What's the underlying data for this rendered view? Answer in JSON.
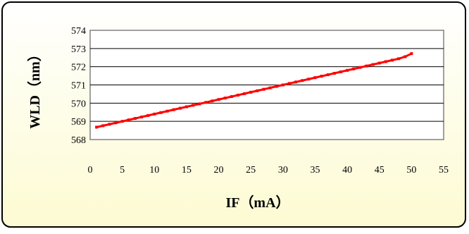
{
  "chart_data": {
    "type": "line",
    "title": "",
    "xlabel": "IF（mA）",
    "ylabel": "WLD（nm）",
    "xlim": [
      0,
      55
    ],
    "ylim": [
      568,
      574
    ],
    "xticks": [
      0,
      5,
      10,
      15,
      20,
      25,
      30,
      35,
      40,
      45,
      50,
      55
    ],
    "yticks": [
      568,
      569,
      570,
      571,
      572,
      573,
      574
    ],
    "grid": "horizontal",
    "legend": "none",
    "series": [
      {
        "color": "#ff0000",
        "x": [
          1,
          2,
          3,
          4,
          5,
          6,
          7,
          8,
          9,
          10,
          11,
          12,
          13,
          14,
          15,
          16,
          17,
          18,
          19,
          20,
          21,
          22,
          23,
          24,
          25,
          26,
          27,
          28,
          29,
          30,
          31,
          32,
          33,
          34,
          35,
          36,
          37,
          38,
          39,
          40,
          41,
          42,
          43,
          44,
          45,
          46,
          47,
          48,
          49,
          50
        ],
        "y": [
          568.68,
          568.76,
          568.84,
          568.92,
          569.0,
          569.08,
          569.16,
          569.24,
          569.32,
          569.4,
          569.48,
          569.56,
          569.64,
          569.72,
          569.8,
          569.88,
          569.96,
          570.04,
          570.12,
          570.2,
          570.28,
          570.36,
          570.44,
          570.52,
          570.6,
          570.68,
          570.76,
          570.84,
          570.92,
          571.0,
          571.08,
          571.16,
          571.24,
          571.32,
          571.4,
          571.48,
          571.56,
          571.64,
          571.72,
          571.8,
          571.88,
          571.96,
          572.04,
          572.12,
          572.2,
          572.28,
          572.36,
          572.44,
          572.55,
          572.72
        ]
      }
    ]
  },
  "colors": {
    "background_top": "#ffffff",
    "background_bottom": "#fdfbd2",
    "frame": "#000000",
    "plot_border": "#808080",
    "gridline": "#000000",
    "series": "#ff0000"
  }
}
